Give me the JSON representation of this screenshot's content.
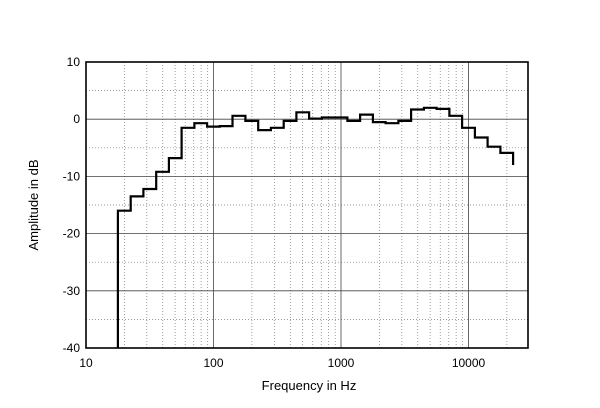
{
  "chart_data": {
    "type": "line",
    "title": "",
    "xlabel": "Frequency in Hz",
    "ylabel": "Amplitude in dB",
    "xscale": "log",
    "xlim": [
      10,
      30000
    ],
    "ylim": [
      -40,
      10
    ],
    "x_ticks": [
      10,
      100,
      1000,
      10000
    ],
    "x_tick_labels": [
      "10",
      "100",
      "1000",
      "10000"
    ],
    "y_ticks": [
      10,
      0,
      -10,
      -20,
      -30,
      -40
    ],
    "y_tick_labels": [
      "10",
      "0",
      "-10",
      "-20",
      "-30",
      "-40"
    ],
    "grid": "major solid, minor dotted",
    "line_color": "#000000",
    "series": [
      {
        "style": "third-octave steps",
        "edges": [
          17.8,
          22.4,
          28.2,
          35.5,
          44.7,
          56.2,
          70.8,
          89.1,
          112,
          141,
          178,
          224,
          282,
          355,
          447,
          562,
          708,
          891,
          1122,
          1413,
          1778,
          2239,
          2818,
          3548,
          4467,
          5623,
          7079,
          8913,
          11220,
          14125,
          17783,
          22387
        ],
        "values": [
          -16,
          -13.5,
          -12.2,
          -9.2,
          -6.8,
          -1.5,
          -0.7,
          -1.3,
          -1.2,
          0.6,
          -0.3,
          -1.9,
          -1.5,
          -0.3,
          1.2,
          0.1,
          0.3,
          0.3,
          -0.3,
          0.8,
          -0.5,
          -0.7,
          -0.3,
          1.7,
          2.0,
          1.8,
          0.6,
          -1.5,
          -3.2,
          -4.8,
          -5.9,
          -8.0
        ],
        "end_value": -40
      }
    ]
  }
}
